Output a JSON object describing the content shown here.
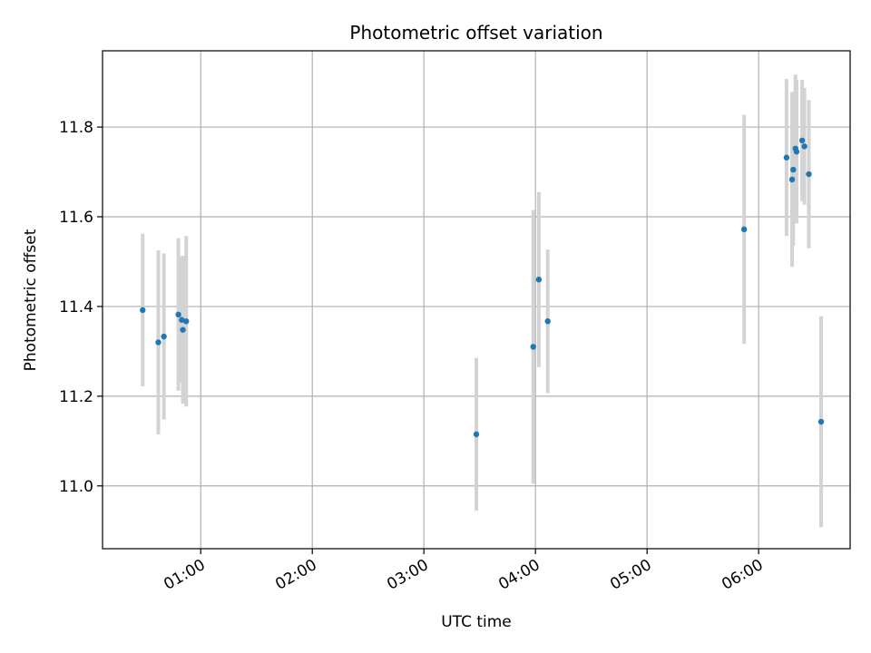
{
  "chart_data": {
    "type": "scatter",
    "title": "Photometric offset variation",
    "xlabel": "UTC time",
    "ylabel": "Photometric offset",
    "x_unit": "hours UTC",
    "xlim": [
      0.12,
      6.82
    ],
    "ylim": [
      10.86,
      11.97
    ],
    "grid": true,
    "point_color": "#1f77b4",
    "errorbar_color": "#d3d3d3",
    "x_ticks": [
      {
        "value": 1,
        "label": "01:00"
      },
      {
        "value": 2,
        "label": "02:00"
      },
      {
        "value": 3,
        "label": "03:00"
      },
      {
        "value": 4,
        "label": "04:00"
      },
      {
        "value": 5,
        "label": "05:00"
      },
      {
        "value": 6,
        "label": "06:00"
      }
    ],
    "y_ticks": [
      {
        "value": 11.0,
        "label": "11.0"
      },
      {
        "value": 11.2,
        "label": "11.2"
      },
      {
        "value": 11.4,
        "label": "11.4"
      },
      {
        "value": 11.6,
        "label": "11.6"
      },
      {
        "value": 11.8,
        "label": "11.8"
      }
    ],
    "points": [
      {
        "x": 0.48,
        "y": 11.392,
        "err": 0.17
      },
      {
        "x": 0.62,
        "y": 11.32,
        "err": 0.205
      },
      {
        "x": 0.67,
        "y": 11.333,
        "err": 0.185
      },
      {
        "x": 0.8,
        "y": 11.382,
        "err": 0.17
      },
      {
        "x": 0.83,
        "y": 11.37,
        "err": 0.14
      },
      {
        "x": 0.84,
        "y": 11.348,
        "err": 0.165
      },
      {
        "x": 0.87,
        "y": 11.367,
        "err": 0.19
      },
      {
        "x": 3.47,
        "y": 11.115,
        "err": 0.17
      },
      {
        "x": 3.98,
        "y": 11.31,
        "err": 0.305
      },
      {
        "x": 4.03,
        "y": 11.46,
        "err": 0.195
      },
      {
        "x": 4.11,
        "y": 11.367,
        "err": 0.16
      },
      {
        "x": 5.87,
        "y": 11.572,
        "err": 0.255
      },
      {
        "x": 6.25,
        "y": 11.732,
        "err": 0.175
      },
      {
        "x": 6.3,
        "y": 11.683,
        "err": 0.195
      },
      {
        "x": 6.31,
        "y": 11.705,
        "err": 0.17
      },
      {
        "x": 6.33,
        "y": 11.752,
        "err": 0.165
      },
      {
        "x": 6.34,
        "y": 11.745,
        "err": 0.16
      },
      {
        "x": 6.39,
        "y": 11.77,
        "err": 0.135
      },
      {
        "x": 6.41,
        "y": 11.757,
        "err": 0.13
      },
      {
        "x": 6.45,
        "y": 11.695,
        "err": 0.165
      },
      {
        "x": 6.56,
        "y": 11.143,
        "err": 0.235
      }
    ]
  }
}
